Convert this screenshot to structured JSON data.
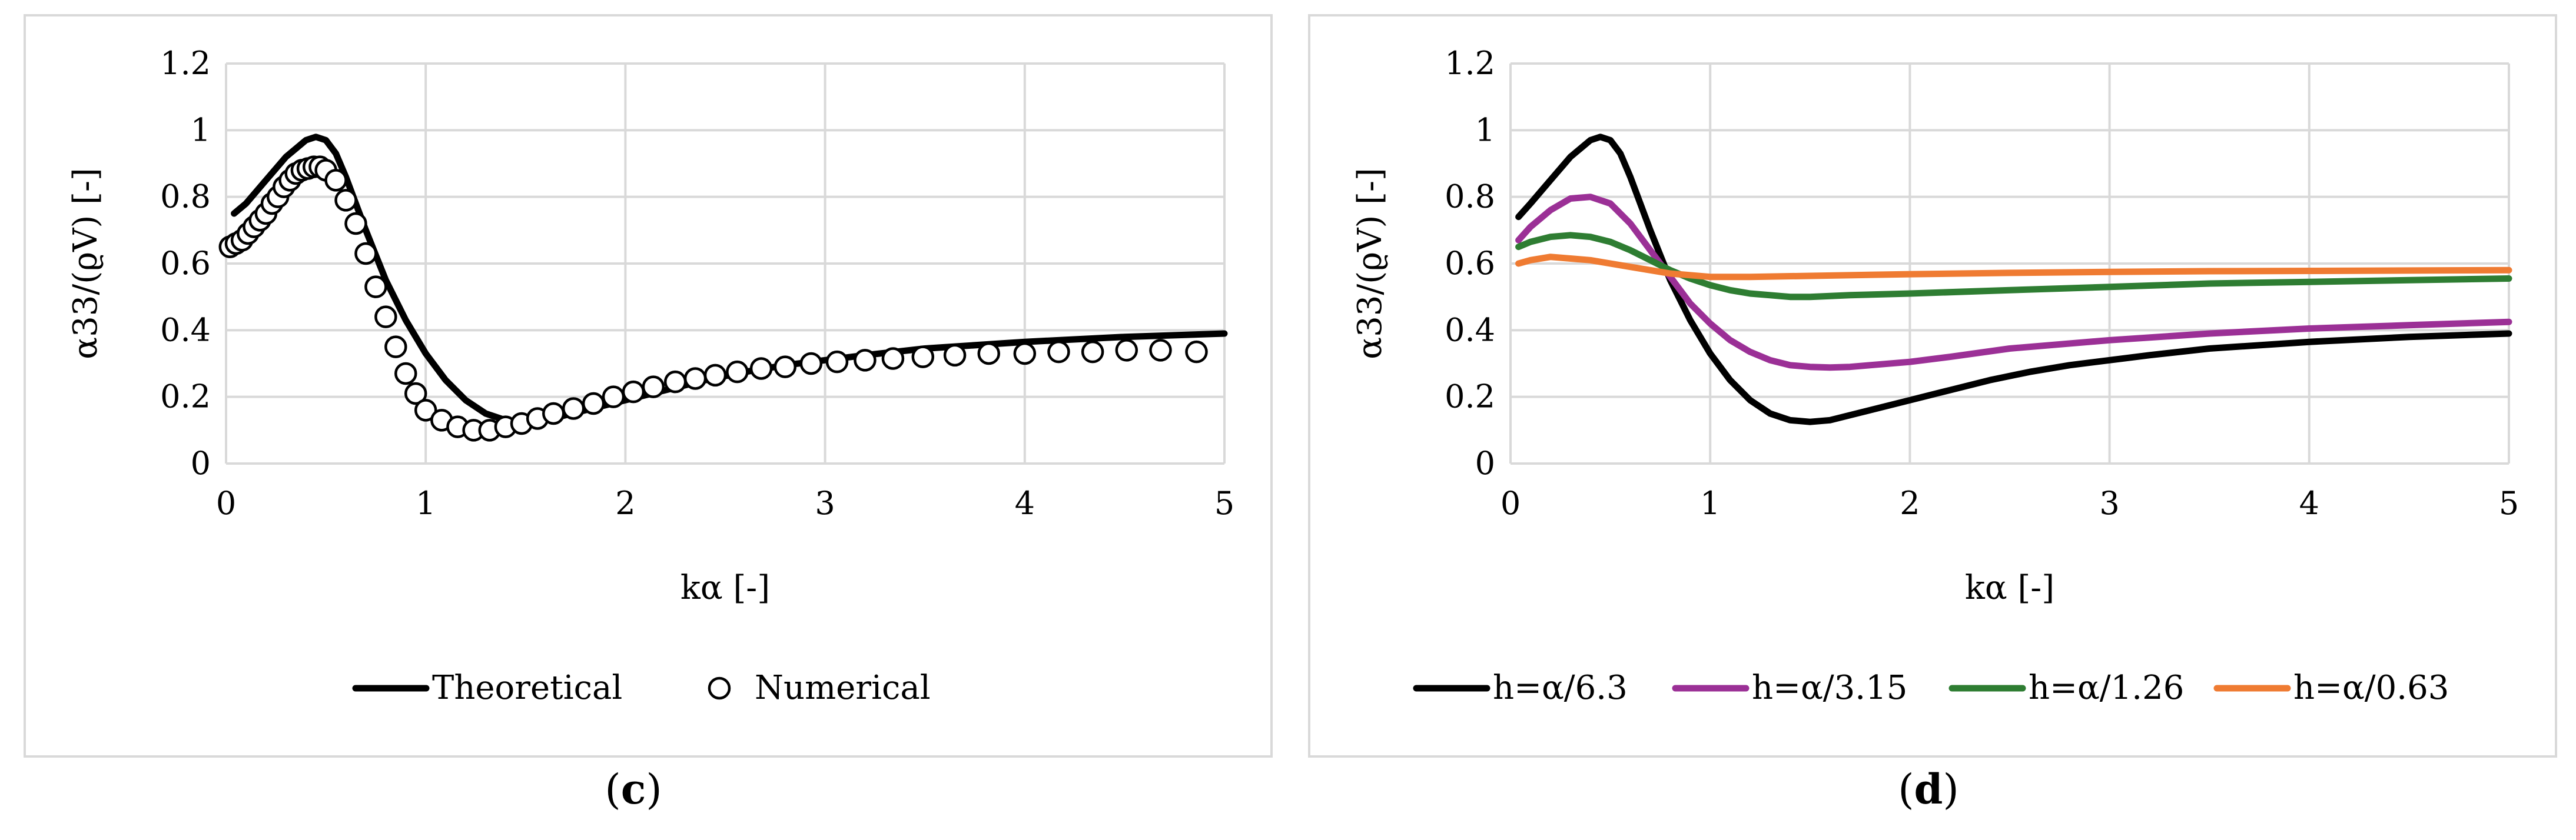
{
  "chart_data": [
    {
      "id": "c",
      "type": "line",
      "panel_label": "c",
      "xlabel": "kα [-]",
      "ylabel": "α33/(ϱV) [-]",
      "xlim": [
        0,
        5
      ],
      "ylim": [
        0,
        1.2
      ],
      "xticks": [
        "0",
        "1",
        "2",
        "3",
        "4",
        "5"
      ],
      "yticks": [
        "0",
        "0.2",
        "0.4",
        "0.6",
        "0.8",
        "1",
        "1.2"
      ],
      "legend_position": "bottom",
      "series": [
        {
          "name": "Theoretical",
          "style": "line",
          "color": "#000000",
          "x": [
            0.04,
            0.1,
            0.2,
            0.3,
            0.4,
            0.45,
            0.5,
            0.55,
            0.6,
            0.7,
            0.8,
            0.9,
            1.0,
            1.1,
            1.2,
            1.3,
            1.4,
            1.5,
            1.6,
            1.7,
            1.8,
            2.0,
            2.2,
            2.4,
            2.6,
            2.8,
            3.0,
            3.2,
            3.5,
            4.0,
            4.5,
            5.0
          ],
          "y": [
            0.75,
            0.78,
            0.85,
            0.92,
            0.97,
            0.98,
            0.97,
            0.93,
            0.86,
            0.7,
            0.55,
            0.43,
            0.33,
            0.25,
            0.19,
            0.15,
            0.13,
            0.125,
            0.13,
            0.145,
            0.16,
            0.19,
            0.22,
            0.25,
            0.275,
            0.295,
            0.31,
            0.325,
            0.345,
            0.365,
            0.38,
            0.39
          ]
        },
        {
          "name": "Numerical",
          "style": "markers",
          "color": "#000000",
          "x": [
            0.02,
            0.05,
            0.08,
            0.11,
            0.14,
            0.17,
            0.2,
            0.23,
            0.26,
            0.29,
            0.32,
            0.35,
            0.38,
            0.41,
            0.44,
            0.47,
            0.5,
            0.55,
            0.6,
            0.65,
            0.7,
            0.75,
            0.8,
            0.85,
            0.9,
            0.95,
            1.0,
            1.08,
            1.16,
            1.24,
            1.32,
            1.4,
            1.48,
            1.56,
            1.64,
            1.74,
            1.84,
            1.94,
            2.04,
            2.14,
            2.25,
            2.35,
            2.45,
            2.56,
            2.68,
            2.8,
            2.93,
            3.06,
            3.2,
            3.34,
            3.49,
            3.65,
            3.82,
            4.0,
            4.17,
            4.34,
            4.51,
            4.68,
            4.86
          ],
          "y": [
            0.65,
            0.66,
            0.67,
            0.69,
            0.71,
            0.73,
            0.75,
            0.78,
            0.8,
            0.83,
            0.85,
            0.87,
            0.88,
            0.885,
            0.89,
            0.89,
            0.88,
            0.85,
            0.79,
            0.72,
            0.63,
            0.53,
            0.44,
            0.35,
            0.27,
            0.21,
            0.16,
            0.13,
            0.11,
            0.1,
            0.1,
            0.11,
            0.12,
            0.135,
            0.15,
            0.165,
            0.18,
            0.2,
            0.215,
            0.23,
            0.245,
            0.255,
            0.265,
            0.275,
            0.285,
            0.29,
            0.3,
            0.305,
            0.31,
            0.315,
            0.32,
            0.325,
            0.33,
            0.33,
            0.335,
            0.335,
            0.34,
            0.34,
            0.335
          ]
        }
      ]
    },
    {
      "id": "d",
      "type": "line",
      "panel_label": "d",
      "xlabel": "kα [-]",
      "ylabel": "α33/(ϱV) [-]",
      "xlim": [
        0,
        5
      ],
      "ylim": [
        0,
        1.2
      ],
      "xticks": [
        "0",
        "1",
        "2",
        "3",
        "4",
        "5"
      ],
      "yticks": [
        "0",
        "0.2",
        "0.4",
        "0.6",
        "0.8",
        "1",
        "1.2"
      ],
      "legend_position": "bottom",
      "series": [
        {
          "name": "h=α/6.3",
          "color": "#000000",
          "x": [
            0.04,
            0.1,
            0.2,
            0.3,
            0.4,
            0.45,
            0.5,
            0.55,
            0.6,
            0.7,
            0.8,
            0.9,
            1.0,
            1.1,
            1.2,
            1.3,
            1.4,
            1.5,
            1.6,
            1.7,
            1.8,
            2.0,
            2.2,
            2.4,
            2.6,
            2.8,
            3.0,
            3.2,
            3.5,
            4.0,
            4.5,
            5.0
          ],
          "y": [
            0.74,
            0.78,
            0.85,
            0.92,
            0.97,
            0.98,
            0.97,
            0.93,
            0.86,
            0.7,
            0.55,
            0.43,
            0.33,
            0.25,
            0.19,
            0.15,
            0.13,
            0.125,
            0.13,
            0.145,
            0.16,
            0.19,
            0.22,
            0.25,
            0.275,
            0.295,
            0.31,
            0.325,
            0.345,
            0.365,
            0.38,
            0.39
          ]
        },
        {
          "name": "h=α/3.15",
          "color": "#9b3096",
          "x": [
            0.04,
            0.1,
            0.2,
            0.3,
            0.4,
            0.5,
            0.6,
            0.7,
            0.8,
            0.9,
            1.0,
            1.1,
            1.2,
            1.3,
            1.4,
            1.5,
            1.6,
            1.7,
            1.8,
            2.0,
            2.2,
            2.5,
            3.0,
            3.5,
            4.0,
            4.5,
            5.0
          ],
          "y": [
            0.67,
            0.71,
            0.76,
            0.795,
            0.8,
            0.78,
            0.72,
            0.64,
            0.56,
            0.48,
            0.42,
            0.37,
            0.335,
            0.31,
            0.295,
            0.29,
            0.288,
            0.29,
            0.295,
            0.305,
            0.32,
            0.345,
            0.37,
            0.39,
            0.405,
            0.415,
            0.425
          ]
        },
        {
          "name": "h=α/1.26",
          "color": "#2e7d32",
          "x": [
            0.04,
            0.1,
            0.2,
            0.3,
            0.4,
            0.5,
            0.6,
            0.7,
            0.8,
            0.9,
            1.0,
            1.1,
            1.2,
            1.3,
            1.4,
            1.5,
            1.7,
            2.0,
            2.5,
            3.0,
            3.5,
            4.0,
            4.5,
            5.0
          ],
          "y": [
            0.65,
            0.665,
            0.68,
            0.685,
            0.68,
            0.665,
            0.64,
            0.61,
            0.58,
            0.555,
            0.535,
            0.52,
            0.51,
            0.505,
            0.5,
            0.5,
            0.505,
            0.51,
            0.52,
            0.53,
            0.54,
            0.545,
            0.55,
            0.555
          ]
        },
        {
          "name": "h=α/0.63",
          "color": "#ef7b32",
          "x": [
            0.04,
            0.1,
            0.2,
            0.3,
            0.4,
            0.5,
            0.6,
            0.7,
            0.8,
            0.9,
            1.0,
            1.2,
            1.5,
            2.0,
            2.5,
            3.0,
            3.5,
            4.0,
            4.5,
            5.0
          ],
          "y": [
            0.6,
            0.61,
            0.62,
            0.615,
            0.61,
            0.6,
            0.59,
            0.58,
            0.57,
            0.565,
            0.56,
            0.56,
            0.563,
            0.568,
            0.572,
            0.575,
            0.577,
            0.578,
            0.579,
            0.58
          ]
        }
      ]
    }
  ]
}
